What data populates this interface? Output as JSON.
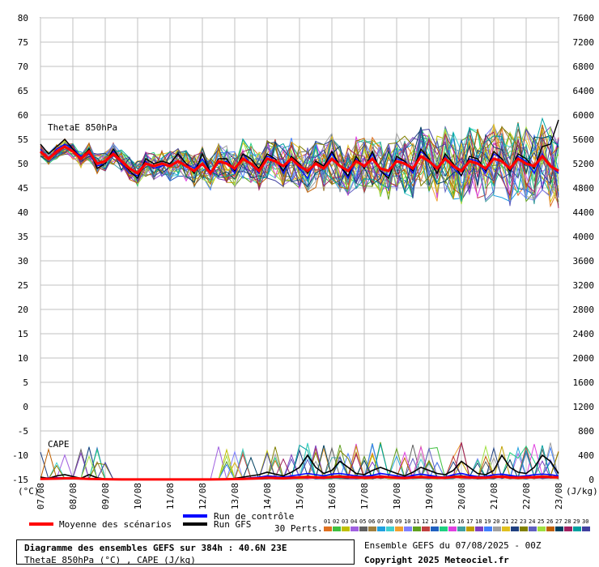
{
  "chart_data": {
    "type": "line",
    "left_axis": {
      "unit_label": "(°C)",
      "ticks": [
        80,
        75,
        70,
        65,
        60,
        55,
        50,
        45,
        40,
        35,
        30,
        25,
        20,
        15,
        10,
        5,
        0,
        -5,
        -10,
        -15
      ],
      "range": [
        -15,
        80
      ]
    },
    "right_axis": {
      "unit_label": "(J/kg)",
      "ticks": [
        7600,
        7200,
        6800,
        6400,
        6000,
        5600,
        5200,
        4800,
        4400,
        4000,
        3600,
        3200,
        2800,
        2400,
        2000,
        1600,
        1200,
        800,
        400,
        0
      ],
      "range": [
        0,
        7600
      ]
    },
    "x_ticks": [
      "07/08",
      "08/08",
      "09/08",
      "10/08",
      "11/08",
      "12/08",
      "13/08",
      "14/08",
      "15/08",
      "16/08",
      "17/08",
      "18/08",
      "19/08",
      "20/08",
      "21/08",
      "22/08",
      "23/08"
    ],
    "panels": {
      "thetae": {
        "label": "ThetaE 850hPa",
        "units": "°C",
        "mean_label": "Moyenne des scénarios",
        "mean": [
          52.5,
          51,
          52.5,
          53.5,
          52.5,
          51,
          52.5,
          50,
          50.5,
          52,
          50.5,
          49,
          48,
          50,
          49.5,
          50,
          49.5,
          50.5,
          49.5,
          48.5,
          50,
          48,
          50.5,
          50,
          49,
          51,
          50,
          48.5,
          51,
          50.5,
          49.5,
          51,
          49.5,
          48.5,
          50,
          49,
          51,
          49.5,
          48.5,
          50.5,
          49.5,
          51,
          49,
          48.5,
          50.5,
          50,
          49,
          51.5,
          50.5,
          49,
          51,
          49.5,
          48.5,
          50.5,
          50,
          49,
          51,
          50.5,
          49,
          51,
          50,
          49.5,
          51.5,
          49.5,
          48.5
        ],
        "control": [
          53,
          51,
          53,
          54,
          53,
          51.5,
          52,
          49.5,
          50,
          52.5,
          50,
          48,
          47.5,
          50.5,
          49,
          49.5,
          50,
          52,
          50,
          49,
          51,
          48.5,
          50,
          50.5,
          48,
          52,
          50,
          48,
          51.5,
          51,
          48,
          51,
          49,
          47,
          50.5,
          49.5,
          52,
          49.5,
          47,
          51,
          49,
          52,
          48.5,
          47.5,
          51,
          50.5,
          48,
          52.5,
          51,
          48,
          51.5,
          49,
          47.5,
          51,
          50.5,
          48,
          52,
          51,
          48.5,
          51.5,
          50.5,
          48,
          52,
          49.5,
          48
        ],
        "gfs": [
          54,
          52,
          53.5,
          55,
          53,
          51,
          53,
          49,
          50,
          53,
          50.5,
          48.5,
          47,
          51,
          50,
          50.5,
          50,
          52,
          50,
          48,
          52,
          48,
          51,
          51,
          48.5,
          52,
          51,
          49,
          52,
          51,
          48.5,
          51.5,
          50,
          48,
          50.5,
          49.5,
          52.5,
          49.5,
          47.5,
          51.5,
          49,
          52.5,
          48.5,
          47,
          51.5,
          50.5,
          48.5,
          53,
          51,
          48,
          52,
          50,
          47.5,
          51.5,
          51,
          48.5,
          52.5,
          51,
          48.5,
          52,
          51,
          49,
          53.5,
          54,
          59
        ]
      },
      "cape": {
        "label": "CAPE",
        "units": "J/kg",
        "mean": [
          10,
          12,
          15,
          20,
          22,
          15,
          10,
          8,
          5,
          3,
          2,
          2,
          2,
          2,
          2,
          2,
          2,
          2,
          2,
          2,
          2,
          2,
          3,
          5,
          8,
          10,
          15,
          20,
          30,
          25,
          20,
          28,
          35,
          40,
          35,
          30,
          40,
          45,
          40,
          35,
          30,
          35,
          45,
          40,
          30,
          25,
          35,
          40,
          35,
          30,
          28,
          40,
          45,
          35,
          30,
          30,
          40,
          45,
          35,
          30,
          35,
          40,
          45,
          40,
          35
        ],
        "control": [
          20,
          25,
          30,
          30,
          20,
          10,
          5,
          3,
          2,
          0,
          0,
          0,
          0,
          0,
          0,
          0,
          0,
          0,
          0,
          0,
          0,
          0,
          0,
          5,
          10,
          20,
          30,
          40,
          60,
          50,
          40,
          60,
          80,
          100,
          80,
          60,
          90,
          100,
          80,
          60,
          50,
          70,
          100,
          80,
          60,
          40,
          70,
          90,
          70,
          50,
          40,
          80,
          100,
          70,
          50,
          50,
          80,
          90,
          70,
          50,
          60,
          80,
          90,
          80,
          60
        ],
        "gfs": [
          40,
          20,
          60,
          80,
          50,
          20,
          80,
          30,
          10,
          0,
          0,
          0,
          0,
          0,
          0,
          0,
          0,
          0,
          0,
          0,
          0,
          0,
          0,
          10,
          20,
          40,
          60,
          80,
          120,
          90,
          60,
          120,
          200,
          400,
          200,
          100,
          150,
          300,
          200,
          100,
          80,
          150,
          200,
          150,
          100,
          60,
          120,
          200,
          150,
          100,
          80,
          150,
          300,
          200,
          100,
          80,
          150,
          400,
          200,
          120,
          100,
          200,
          400,
          300,
          100
        ]
      }
    },
    "legend": {
      "mean": "Moyenne des scénarios",
      "control": "Run de contrôle",
      "gfs": "Run GFS",
      "perturbations_label": "30 Perts.",
      "perturbation_numbers": [
        "01",
        "02",
        "03",
        "04",
        "05",
        "06",
        "07",
        "08",
        "09",
        "10",
        "11",
        "12",
        "13",
        "14",
        "15",
        "16",
        "17",
        "18",
        "19",
        "20",
        "21",
        "22",
        "23",
        "24",
        "25",
        "26",
        "27",
        "28",
        "29",
        "30"
      ],
      "perturbation_colors": [
        "#e07020",
        "#40c040",
        "#c0c000",
        "#a060e0",
        "#606060",
        "#a08040",
        "#20a0e0",
        "#40d0d0",
        "#f0a030",
        "#8080ff",
        "#60a020",
        "#c04040",
        "#2060c0",
        "#20d080",
        "#e040e0",
        "#40a0a0",
        "#c0a000",
        "#8040c0",
        "#4080ff",
        "#a0a0a0",
        "#e0c020",
        "#204080",
        "#808000",
        "#6060c0",
        "#a0e040",
        "#c06000",
        "#004060",
        "#a02060",
        "#00a0a0",
        "#4040a0"
      ],
      "mean_color": "#ff0000",
      "control_color": "#0000ff",
      "gfs_color": "#000000"
    }
  },
  "info": {
    "title": "Diagramme des ensembles GEFS sur 384h : 40.6N 23E",
    "subtitle": "ThetaE 850hPa (°C) , CAPE (J/kg)",
    "run_date": "Ensemble GEFS du 07/08/2025 - 00Z",
    "copyright": "Copyright 2025 Meteociel.fr"
  }
}
